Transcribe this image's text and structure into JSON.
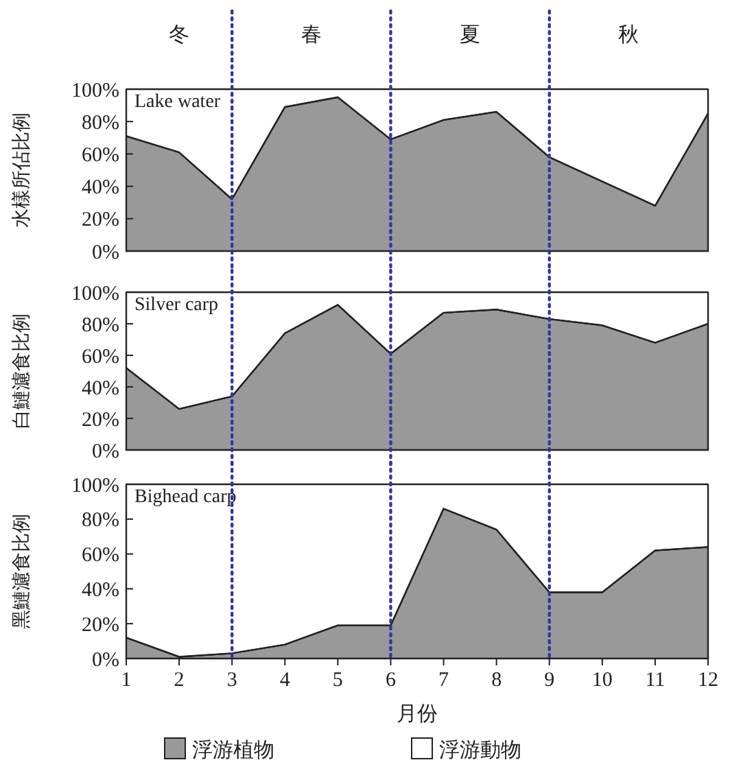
{
  "chart_data": [
    {
      "type": "area",
      "title": "Lake water",
      "ylabel": "水樣所佔比例",
      "stacked": true,
      "xlim": [
        1,
        12
      ],
      "tick_labels": "y",
      "ylim": [
        0,
        100
      ],
      "yticks": [
        {
          "value": 0,
          "label": "0%"
        },
        {
          "value": 20,
          "label": "20%"
        },
        {
          "value": 40,
          "label": "40%"
        },
        {
          "value": 60,
          "label": "60%"
        },
        {
          "value": 80,
          "label": "80%"
        },
        {
          "value": 100,
          "label": "100%"
        }
      ],
      "x": [
        1,
        2,
        3,
        4,
        5,
        6,
        7,
        8,
        9,
        10,
        11,
        12
      ],
      "series": [
        {
          "color": "#999999",
          "values": [
            71,
            61,
            32,
            89,
            95,
            69,
            81,
            86,
            58,
            43,
            28,
            85
          ]
        },
        {
          "color": "#ffffff",
          "values": [
            29,
            39,
            68,
            11,
            5,
            31,
            19,
            14,
            42,
            57,
            72,
            15
          ]
        }
      ],
      "ref_lines": [
        {
          "axis": "x",
          "value": 3,
          "color": "#3333aa",
          "line_style": "dotted"
        },
        {
          "axis": "x",
          "value": 6,
          "color": "#3333aa",
          "line_style": "dotted"
        },
        {
          "axis": "x",
          "value": 9,
          "color": "#3333aa",
          "line_style": "dotted"
        }
      ],
      "annotations": [
        "冬",
        "春",
        "夏",
        "秋"
      ]
    },
    {
      "type": "area",
      "title": "Silver carp",
      "ylabel": "白鰱濾食比例",
      "stacked": true,
      "xlim": [
        1,
        12
      ],
      "tick_labels": "y",
      "ylim": [
        0,
        100
      ],
      "yticks": [
        {
          "value": 0,
          "label": "0%"
        },
        {
          "value": 20,
          "label": "20%"
        },
        {
          "value": 40,
          "label": "40%"
        },
        {
          "value": 60,
          "label": "60%"
        },
        {
          "value": 80,
          "label": "80%"
        },
        {
          "value": 100,
          "label": "100%"
        }
      ],
      "x": [
        1,
        2,
        3,
        4,
        5,
        6,
        7,
        8,
        9,
        10,
        11,
        12
      ],
      "series": [
        {
          "color": "#999999",
          "values": [
            52,
            26,
            34,
            74,
            92,
            61,
            87,
            89,
            83,
            79,
            68,
            80
          ]
        },
        {
          "color": "#ffffff",
          "values": [
            48,
            74,
            66,
            26,
            8,
            39,
            13,
            11,
            17,
            21,
            32,
            20
          ]
        }
      ],
      "ref_lines": [
        {
          "axis": "x",
          "value": 3,
          "color": "#3333aa",
          "line_style": "dotted"
        },
        {
          "axis": "x",
          "value": 6,
          "color": "#3333aa",
          "line_style": "dotted"
        },
        {
          "axis": "x",
          "value": 9,
          "color": "#3333aa",
          "line_style": "dotted"
        }
      ]
    },
    {
      "type": "area",
      "title": "Bighead carp",
      "ylabel": "黑鰱濾食比例",
      "xlabel": "月份",
      "stacked": true,
      "legend": "bottom",
      "xlim": [
        1,
        12
      ],
      "xticks": [
        1,
        2,
        3,
        4,
        5,
        6,
        7,
        8,
        9,
        10,
        11,
        12
      ],
      "ylim": [
        0,
        100
      ],
      "yticks": [
        {
          "value": 0,
          "label": "0%"
        },
        {
          "value": 20,
          "label": "20%"
        },
        {
          "value": 40,
          "label": "40%"
        },
        {
          "value": 60,
          "label": "60%"
        },
        {
          "value": 80,
          "label": "80%"
        },
        {
          "value": 100,
          "label": "100%"
        }
      ],
      "x": [
        1,
        2,
        3,
        4,
        5,
        6,
        7,
        8,
        9,
        10,
        11,
        12
      ],
      "series": [
        {
          "name": "浮游植物",
          "color": "#999999",
          "values": [
            12,
            1,
            3,
            8,
            19,
            19,
            86,
            74,
            38,
            38,
            62,
            64
          ]
        },
        {
          "name": "浮游動物",
          "color": "#ffffff",
          "values": [
            88,
            99,
            97,
            92,
            81,
            81,
            14,
            26,
            62,
            62,
            38,
            36
          ]
        }
      ],
      "ref_lines": [
        {
          "axis": "x",
          "value": 3,
          "color": "#3333aa",
          "line_style": "dotted"
        },
        {
          "axis": "x",
          "value": 6,
          "color": "#3333aa",
          "line_style": "dotted"
        },
        {
          "axis": "x",
          "value": 9,
          "color": "#3333aa",
          "line_style": "dotted"
        }
      ]
    }
  ]
}
